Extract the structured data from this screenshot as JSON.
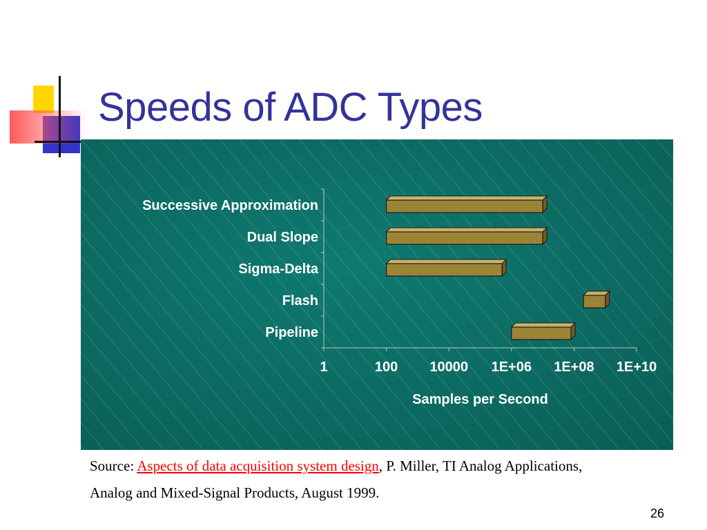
{
  "slide": {
    "title": "Speeds of ADC Types",
    "page_number": "26"
  },
  "source": {
    "prefix": "Source: ",
    "link_text": "Aspects of data acquisition system design",
    "suffix": ", P. Miller, TI Analog Applications, Analog and Mixed-Signal Products, August 1999."
  },
  "colors": {
    "title": "#33339a",
    "panel": "#0c6e66",
    "bar_fill": "#9c8436",
    "link": "#ff0000",
    "deco_yellow": "#ffd700",
    "deco_blue": "#3333cc",
    "deco_red": "#ff6666"
  },
  "chart_data": {
    "type": "bar",
    "orientation": "horizontal",
    "style": "3d floating range bars",
    "x_scale": "log",
    "xlabel": "Samples per Second",
    "xlim": [
      1,
      10000000000
    ],
    "xticks": [
      "1",
      "100",
      "10000",
      "1E+06",
      "1E+08",
      "1E+10"
    ],
    "categories": [
      "Successive Approximation",
      "Dual Slope",
      "Sigma-Delta",
      "Flash",
      "Pipeline"
    ],
    "ranges": [
      {
        "category": "Successive Approximation",
        "low": 100,
        "high": 10000000
      },
      {
        "category": "Dual Slope",
        "low": 100,
        "high": 10000000
      },
      {
        "category": "Sigma-Delta",
        "low": 100,
        "high": 500000
      },
      {
        "category": "Flash",
        "low": 200000000,
        "high": 1000000000
      },
      {
        "category": "Pipeline",
        "low": 1000000,
        "high": 80000000
      }
    ],
    "grid": false,
    "legend": "none"
  }
}
